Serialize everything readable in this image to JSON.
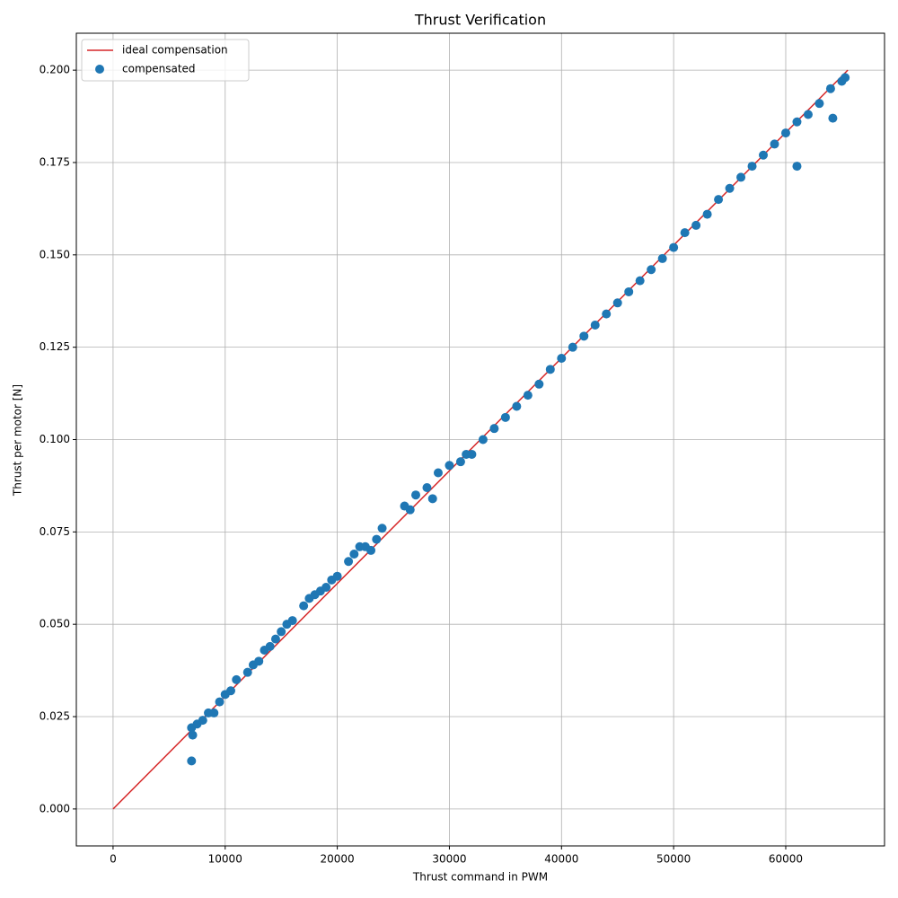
{
  "chart_data": {
    "type": "scatter",
    "title": "Thrust Verification",
    "xlabel": "Thrust command in PWM",
    "ylabel": "Thrust per motor [N]",
    "xlim": [
      -3277,
      68812
    ],
    "ylim": [
      -0.01,
      0.21
    ],
    "xticks": [
      0,
      10000,
      20000,
      30000,
      40000,
      50000,
      60000
    ],
    "yticks": [
      {
        "value": 0,
        "label": "0.000"
      },
      0.025,
      {
        "value": 0.05,
        "label": "0.050"
      },
      0.075,
      {
        "value": 0.1,
        "label": "0.100"
      },
      0.125,
      {
        "value": 0.15,
        "label": "0.150"
      },
      0.175,
      {
        "value": 0.2,
        "label": "0.200"
      }
    ],
    "grid": true,
    "legend": "upper left",
    "series": [
      {
        "name": "ideal compensation",
        "type": "line",
        "color": "#d62728",
        "x": [
          0,
          65535
        ],
        "values": [
          0,
          0.2
        ]
      },
      {
        "name": "compensated",
        "type": "scatter",
        "color": "#1f77b4",
        "x": [
          7000,
          7000,
          7100,
          7500,
          8000,
          8500,
          9000,
          9500,
          10000,
          10500,
          11000,
          12000,
          12500,
          13000,
          13500,
          14000,
          14500,
          15000,
          15500,
          16000,
          17000,
          17500,
          18000,
          18500,
          19000,
          19500,
          20000,
          21000,
          21500,
          22000,
          22500,
          23000,
          23500,
          24000,
          26000,
          26500,
          27000,
          28000,
          28500,
          29000,
          30000,
          31000,
          31500,
          32000,
          33000,
          34000,
          35000,
          36000,
          37000,
          38000,
          39000,
          40000,
          41000,
          42000,
          43000,
          44000,
          45000,
          46000,
          47000,
          48000,
          49000,
          50000,
          51000,
          52000,
          53000,
          54000,
          55000,
          56000,
          57000,
          58000,
          59000,
          60000,
          61000,
          61000,
          62000,
          63000,
          64000,
          64200,
          65000,
          65300
        ],
        "values": [
          0.022,
          0.013,
          0.02,
          0.023,
          0.024,
          0.026,
          0.026,
          0.029,
          0.031,
          0.032,
          0.035,
          0.037,
          0.039,
          0.04,
          0.043,
          0.044,
          0.046,
          0.048,
          0.05,
          0.051,
          0.055,
          0.057,
          0.058,
          0.059,
          0.06,
          0.062,
          0.063,
          0.067,
          0.069,
          0.071,
          0.071,
          0.07,
          0.073,
          0.076,
          0.082,
          0.081,
          0.085,
          0.087,
          0.084,
          0.091,
          0.093,
          0.094,
          0.096,
          0.096,
          0.1,
          0.103,
          0.106,
          0.109,
          0.112,
          0.115,
          0.119,
          0.122,
          0.125,
          0.128,
          0.131,
          0.134,
          0.137,
          0.14,
          0.143,
          0.146,
          0.149,
          0.152,
          0.156,
          0.158,
          0.161,
          0.165,
          0.168,
          0.171,
          0.174,
          0.177,
          0.18,
          0.183,
          0.186,
          0.174,
          0.188,
          0.191,
          0.195,
          0.187,
          0.197,
          0.198
        ]
      }
    ]
  }
}
